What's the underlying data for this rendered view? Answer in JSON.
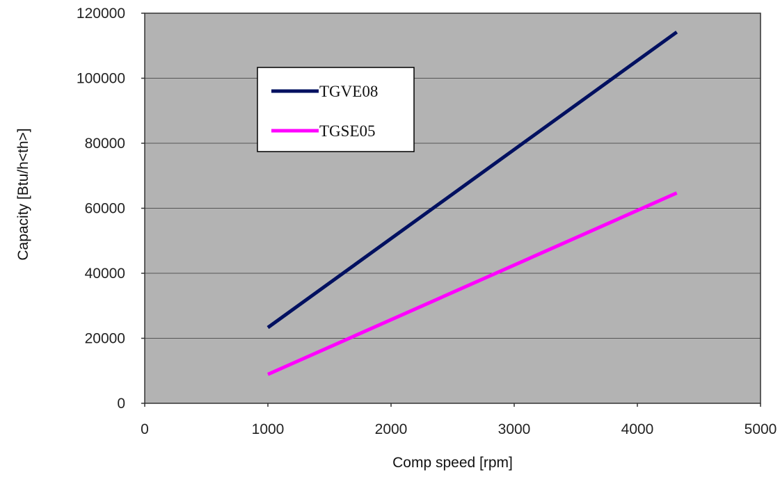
{
  "chart_data": {
    "type": "line",
    "title": "",
    "xlabel": "Comp speed [rpm]",
    "ylabel": "Capacity [Btu/h<th>]",
    "xlim": [
      0,
      5000
    ],
    "ylim": [
      0,
      120000
    ],
    "x_ticks": [
      0,
      1000,
      2000,
      3000,
      4000,
      5000
    ],
    "y_ticks": [
      0,
      20000,
      40000,
      60000,
      80000,
      100000,
      120000
    ],
    "x_tick_labels": [
      "0",
      "1000",
      "2000",
      "3000",
      "4000",
      "5000"
    ],
    "y_tick_labels": [
      "0",
      "20000",
      "40000",
      "60000",
      "80000",
      "100000",
      "120000"
    ],
    "grid": "horizontal",
    "plot_background": "#b3b3b3",
    "legend_position": "top-left",
    "series": [
      {
        "name": "TGVE08",
        "color": "#001060",
        "x": [
          1000,
          4320
        ],
        "y": [
          23300,
          114200
        ]
      },
      {
        "name": "TGSE05",
        "color": "#ff00ff",
        "x": [
          1000,
          4320
        ],
        "y": [
          8900,
          64700
        ]
      }
    ]
  }
}
